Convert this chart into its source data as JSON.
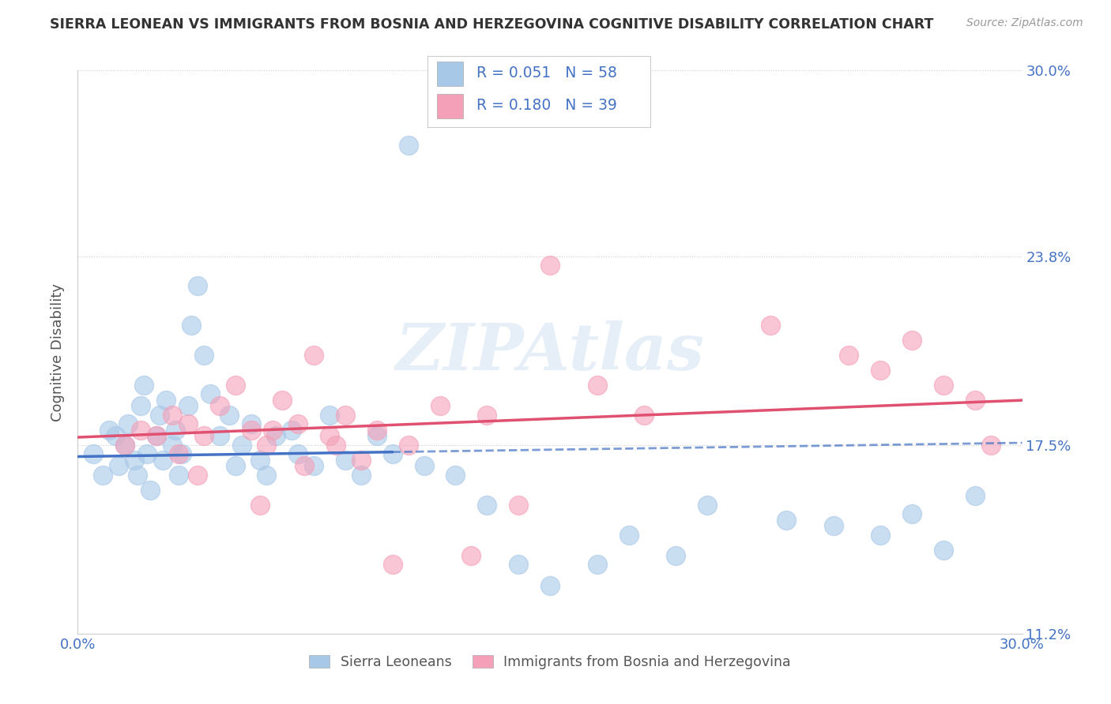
{
  "title": "SIERRA LEONEAN VS IMMIGRANTS FROM BOSNIA AND HERZEGOVINA COGNITIVE DISABILITY CORRELATION CHART",
  "source": "Source: ZipAtlas.com",
  "ylabel": "Cognitive Disability",
  "xlim": [
    0.0,
    30.0
  ],
  "ylim": [
    11.2,
    30.0
  ],
  "yticks": [
    11.2,
    17.5,
    23.8,
    30.0
  ],
  "xticks": [
    0.0,
    30.0
  ],
  "xtick_labels": [
    "0.0%",
    "30.0%"
  ],
  "ytick_labels": [
    "11.2%",
    "17.5%",
    "23.8%",
    "30.0%"
  ],
  "blue_R": 0.051,
  "blue_N": 58,
  "pink_R": 0.18,
  "pink_N": 39,
  "legend1_label": "Sierra Leoneans",
  "legend2_label": "Immigrants from Bosnia and Herzegovina",
  "watermark": "ZIPAtlas",
  "blue_color": "#a8c8e8",
  "pink_color": "#f4a0b8",
  "blue_line_color": "#4472c4",
  "pink_line_color": "#e05070",
  "title_color": "#333333",
  "axis_label_color": "#555555",
  "tick_color": "#4472c4",
  "blue_scatter_x": [
    0.5,
    0.8,
    1.0,
    1.2,
    1.3,
    1.5,
    1.6,
    1.8,
    1.9,
    2.0,
    2.1,
    2.2,
    2.3,
    2.5,
    2.6,
    2.7,
    2.8,
    3.0,
    3.1,
    3.2,
    3.3,
    3.5,
    3.6,
    3.8,
    4.0,
    4.2,
    4.5,
    4.8,
    5.0,
    5.2,
    5.5,
    5.8,
    6.0,
    6.3,
    6.8,
    7.0,
    7.5,
    8.0,
    8.5,
    9.0,
    9.5,
    10.0,
    10.5,
    11.0,
    12.0,
    13.0,
    14.0,
    15.0,
    16.5,
    17.5,
    19.0,
    20.0,
    22.5,
    24.0,
    25.5,
    26.5,
    27.5,
    28.5
  ],
  "blue_scatter_y": [
    17.2,
    16.5,
    18.0,
    17.8,
    16.8,
    17.5,
    18.2,
    17.0,
    16.5,
    18.8,
    19.5,
    17.2,
    16.0,
    17.8,
    18.5,
    17.0,
    19.0,
    17.5,
    18.0,
    16.5,
    17.2,
    18.8,
    21.5,
    22.8,
    20.5,
    19.2,
    17.8,
    18.5,
    16.8,
    17.5,
    18.2,
    17.0,
    16.5,
    17.8,
    18.0,
    17.2,
    16.8,
    18.5,
    17.0,
    16.5,
    17.8,
    17.2,
    27.5,
    16.8,
    16.5,
    15.5,
    13.5,
    12.8,
    13.5,
    14.5,
    13.8,
    15.5,
    15.0,
    14.8,
    14.5,
    15.2,
    14.0,
    15.8
  ],
  "pink_scatter_x": [
    1.5,
    2.0,
    2.5,
    3.0,
    3.5,
    4.0,
    4.5,
    5.0,
    5.5,
    6.0,
    6.5,
    7.0,
    7.5,
    8.0,
    8.5,
    9.5,
    10.5,
    11.5,
    13.0,
    15.0,
    16.5,
    18.0,
    22.0,
    24.5,
    25.5,
    26.5,
    27.5,
    28.5,
    3.2,
    3.8,
    5.8,
    6.2,
    7.2,
    8.2,
    9.0,
    10.0,
    12.5,
    14.0,
    29.0
  ],
  "pink_scatter_y": [
    17.5,
    18.0,
    17.8,
    18.5,
    18.2,
    17.8,
    18.8,
    19.5,
    18.0,
    17.5,
    19.0,
    18.2,
    20.5,
    17.8,
    18.5,
    18.0,
    17.5,
    18.8,
    18.5,
    23.5,
    19.5,
    18.5,
    21.5,
    20.5,
    20.0,
    21.0,
    19.5,
    19.0,
    17.2,
    16.5,
    15.5,
    18.0,
    16.8,
    17.5,
    17.0,
    13.5,
    13.8,
    15.5,
    17.5
  ]
}
